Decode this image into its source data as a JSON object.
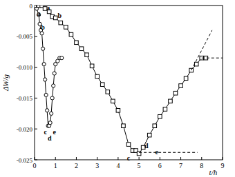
{
  "chart_data": {
    "type": "line",
    "x_label": "t/h",
    "y_label": "ΔW/g",
    "xlim": [
      0,
      9
    ],
    "ylim": [
      -0.025,
      0
    ],
    "xticks": [
      0,
      1,
      2,
      3,
      4,
      5,
      6,
      7,
      8,
      9
    ],
    "yticks": [
      0,
      -0.005,
      {
        "value": -0.01,
        "label": "-0.010"
      },
      -0.015,
      {
        "value": -0.02,
        "label": "-0.020"
      },
      -0.025
    ],
    "grid": false,
    "series": [
      {
        "color": "#000000",
        "marker": "circle",
        "line_style": "solid",
        "x": [
          0,
          0.1,
          0.2,
          0.25,
          0.3,
          0.35,
          0.4,
          0.45,
          0.5,
          0.55,
          0.6,
          0.65,
          0.7,
          0.75,
          0.8,
          0.85,
          0.9,
          0.95,
          1.0,
          1.1,
          1.2,
          1.3
        ],
        "values": [
          0,
          -0.0005,
          -0.0015,
          -0.003,
          -0.004,
          -0.0045,
          -0.007,
          -0.0095,
          -0.012,
          -0.0145,
          -0.017,
          -0.0195,
          -0.0195,
          -0.019,
          -0.0175,
          -0.015,
          -0.013,
          -0.011,
          -0.0095,
          -0.009,
          -0.0085,
          -0.0085
        ]
      },
      {
        "color": "#000000",
        "marker": "square",
        "line_style": "solid",
        "x": [
          0,
          0.2,
          0.35,
          0.5,
          0.7,
          0.85,
          1.0,
          1.25,
          1.5,
          1.75,
          2.0,
          2.25,
          2.5,
          2.75,
          3.0,
          3.25,
          3.5,
          3.75,
          4.0,
          4.25,
          4.5,
          4.7,
          4.85,
          5.0,
          5.2,
          5.5,
          5.75,
          6.0,
          6.25,
          6.5,
          6.75,
          7.0,
          7.25,
          7.5,
          7.75,
          8.0,
          8.2
        ],
        "values": [
          0,
          0,
          0,
          -0.0005,
          -0.001,
          -0.0018,
          -0.002,
          -0.0028,
          -0.0035,
          -0.0047,
          -0.006,
          -0.007,
          -0.008,
          -0.0098,
          -0.0115,
          -0.0128,
          -0.014,
          -0.0155,
          -0.017,
          -0.0195,
          -0.0225,
          -0.0235,
          -0.0235,
          -0.024,
          -0.023,
          -0.021,
          -0.0195,
          -0.018,
          -0.0168,
          -0.0155,
          -0.0142,
          -0.013,
          -0.0118,
          -0.0105,
          -0.0095,
          -0.0085,
          -0.0085
        ]
      },
      {
        "color": "#000000",
        "marker": "none",
        "line_style": "dashed",
        "x": [
          7.5,
          8.5
        ],
        "values": [
          -0.0105,
          -0.004
        ]
      },
      {
        "color": "#000000",
        "marker": "none",
        "line_style": "dashed",
        "x": [
          8.0,
          9.0
        ],
        "values": [
          -0.0085,
          -0.0085
        ]
      },
      {
        "color": "#000000",
        "marker": "none",
        "line_style": "dashed",
        "x": [
          5.0,
          7.8
        ],
        "values": [
          -0.0238,
          -0.0238
        ]
      }
    ],
    "annotations": [
      {
        "text": "a",
        "x": 0.2,
        "y": -0.0013
      },
      {
        "text": "b",
        "x": 0.4,
        "y": -0.0036
      },
      {
        "text": "c",
        "x": 0.52,
        "y": -0.0205
      },
      {
        "text": "d",
        "x": 0.72,
        "y": -0.0215
      },
      {
        "text": "e",
        "x": 0.95,
        "y": -0.0205
      },
      {
        "text": "a",
        "x": 0.65,
        "y": -0.0004
      },
      {
        "text": "b",
        "x": 1.2,
        "y": -0.0017
      },
      {
        "text": "c",
        "x": 4.5,
        "y": -0.0248
      },
      {
        "text": "d",
        "x": 5.35,
        "y": -0.0228
      },
      {
        "text": "e",
        "x": 5.85,
        "y": -0.0238
      }
    ]
  }
}
